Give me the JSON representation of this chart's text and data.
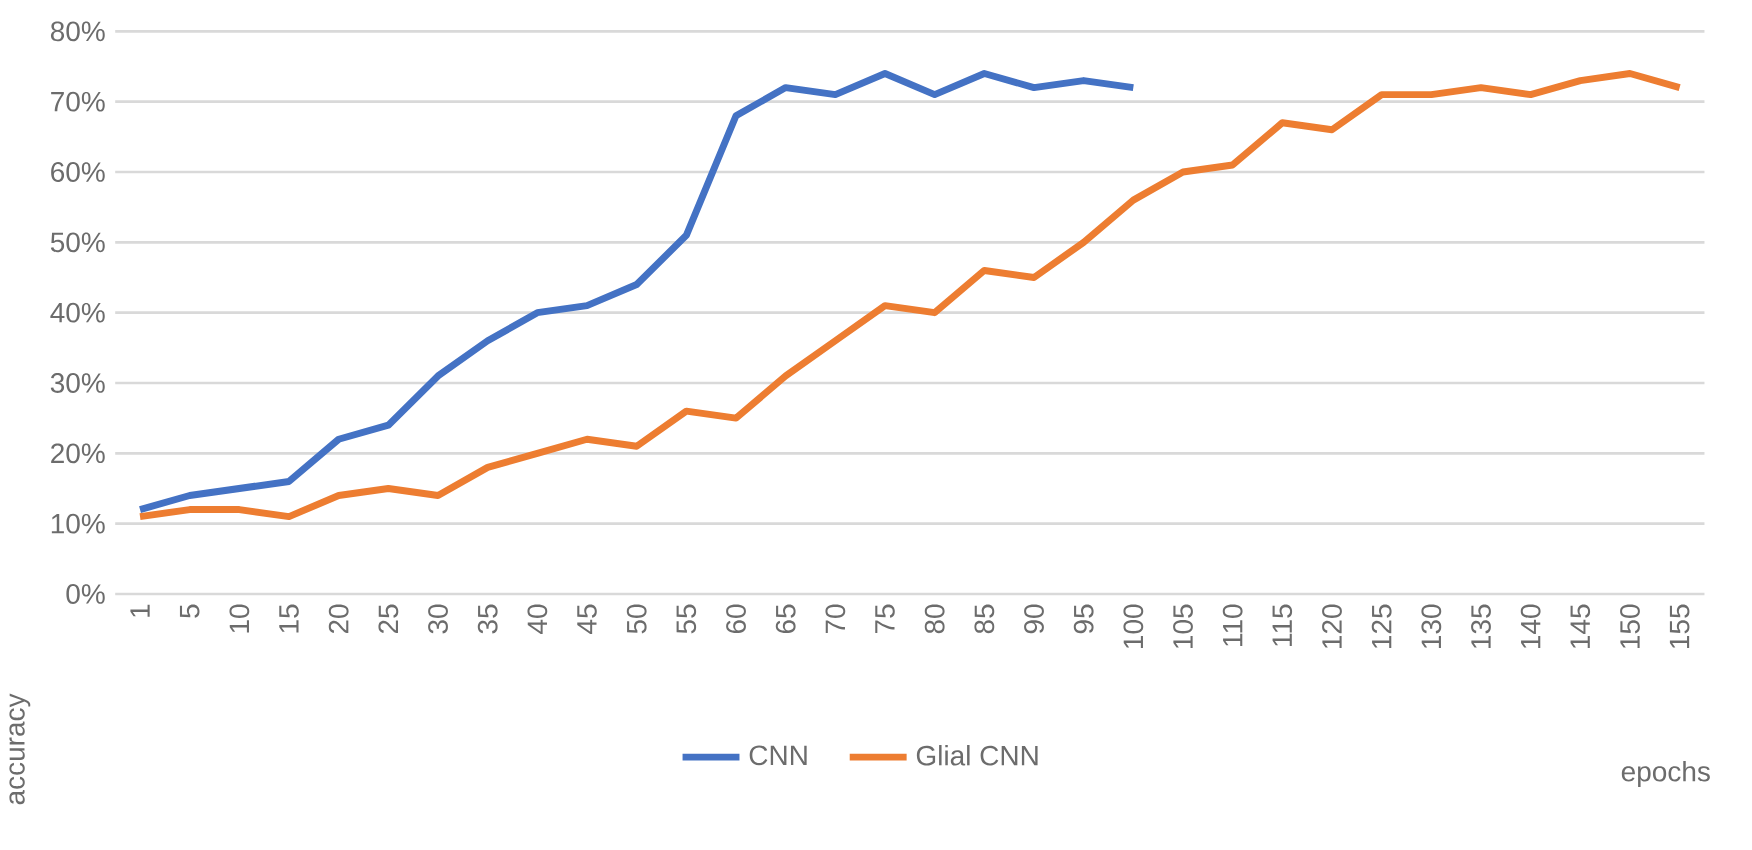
{
  "chart_data": {
    "type": "line",
    "xlabel": "epochs",
    "ylabel": "accuracy",
    "categories": [
      "1",
      "5",
      "10",
      "15",
      "20",
      "25",
      "30",
      "35",
      "40",
      "45",
      "50",
      "55",
      "60",
      "65",
      "70",
      "75",
      "80",
      "85",
      "90",
      "95",
      "100",
      "105",
      "110",
      "115",
      "120",
      "125",
      "130",
      "135",
      "140",
      "145",
      "150",
      "155"
    ],
    "series": [
      {
        "name": "CNN",
        "color": "#4472c4",
        "values": [
          12,
          14,
          15,
          16,
          22,
          24,
          31,
          36,
          40,
          41,
          44,
          51,
          68,
          72,
          71,
          74,
          71,
          74,
          72,
          73,
          72,
          null,
          null,
          null,
          null,
          null,
          null,
          null,
          null,
          null,
          null,
          null
        ]
      },
      {
        "name": "Glial CNN",
        "color": "#ed7d31",
        "values": [
          11,
          12,
          12,
          11,
          14,
          15,
          14,
          18,
          20,
          22,
          21,
          26,
          25,
          31,
          36,
          41,
          40,
          46,
          45,
          50,
          56,
          60,
          61,
          67,
          66,
          71,
          71,
          72,
          71,
          73,
          74,
          72
        ]
      }
    ],
    "ylim": [
      0,
      80
    ],
    "yticks": [
      {
        "value": 0,
        "label": "0%"
      },
      {
        "value": 10,
        "label": "10%"
      },
      {
        "value": 20,
        "label": "20%"
      },
      {
        "value": 30,
        "label": "30%"
      },
      {
        "value": 40,
        "label": "40%"
      },
      {
        "value": 50,
        "label": "50%"
      },
      {
        "value": 60,
        "label": "60%"
      },
      {
        "value": 70,
        "label": "70%"
      },
      {
        "value": 80,
        "label": "80%"
      }
    ],
    "grid": "y",
    "legend": "bottom",
    "marker": "none",
    "line_style": "solid"
  }
}
